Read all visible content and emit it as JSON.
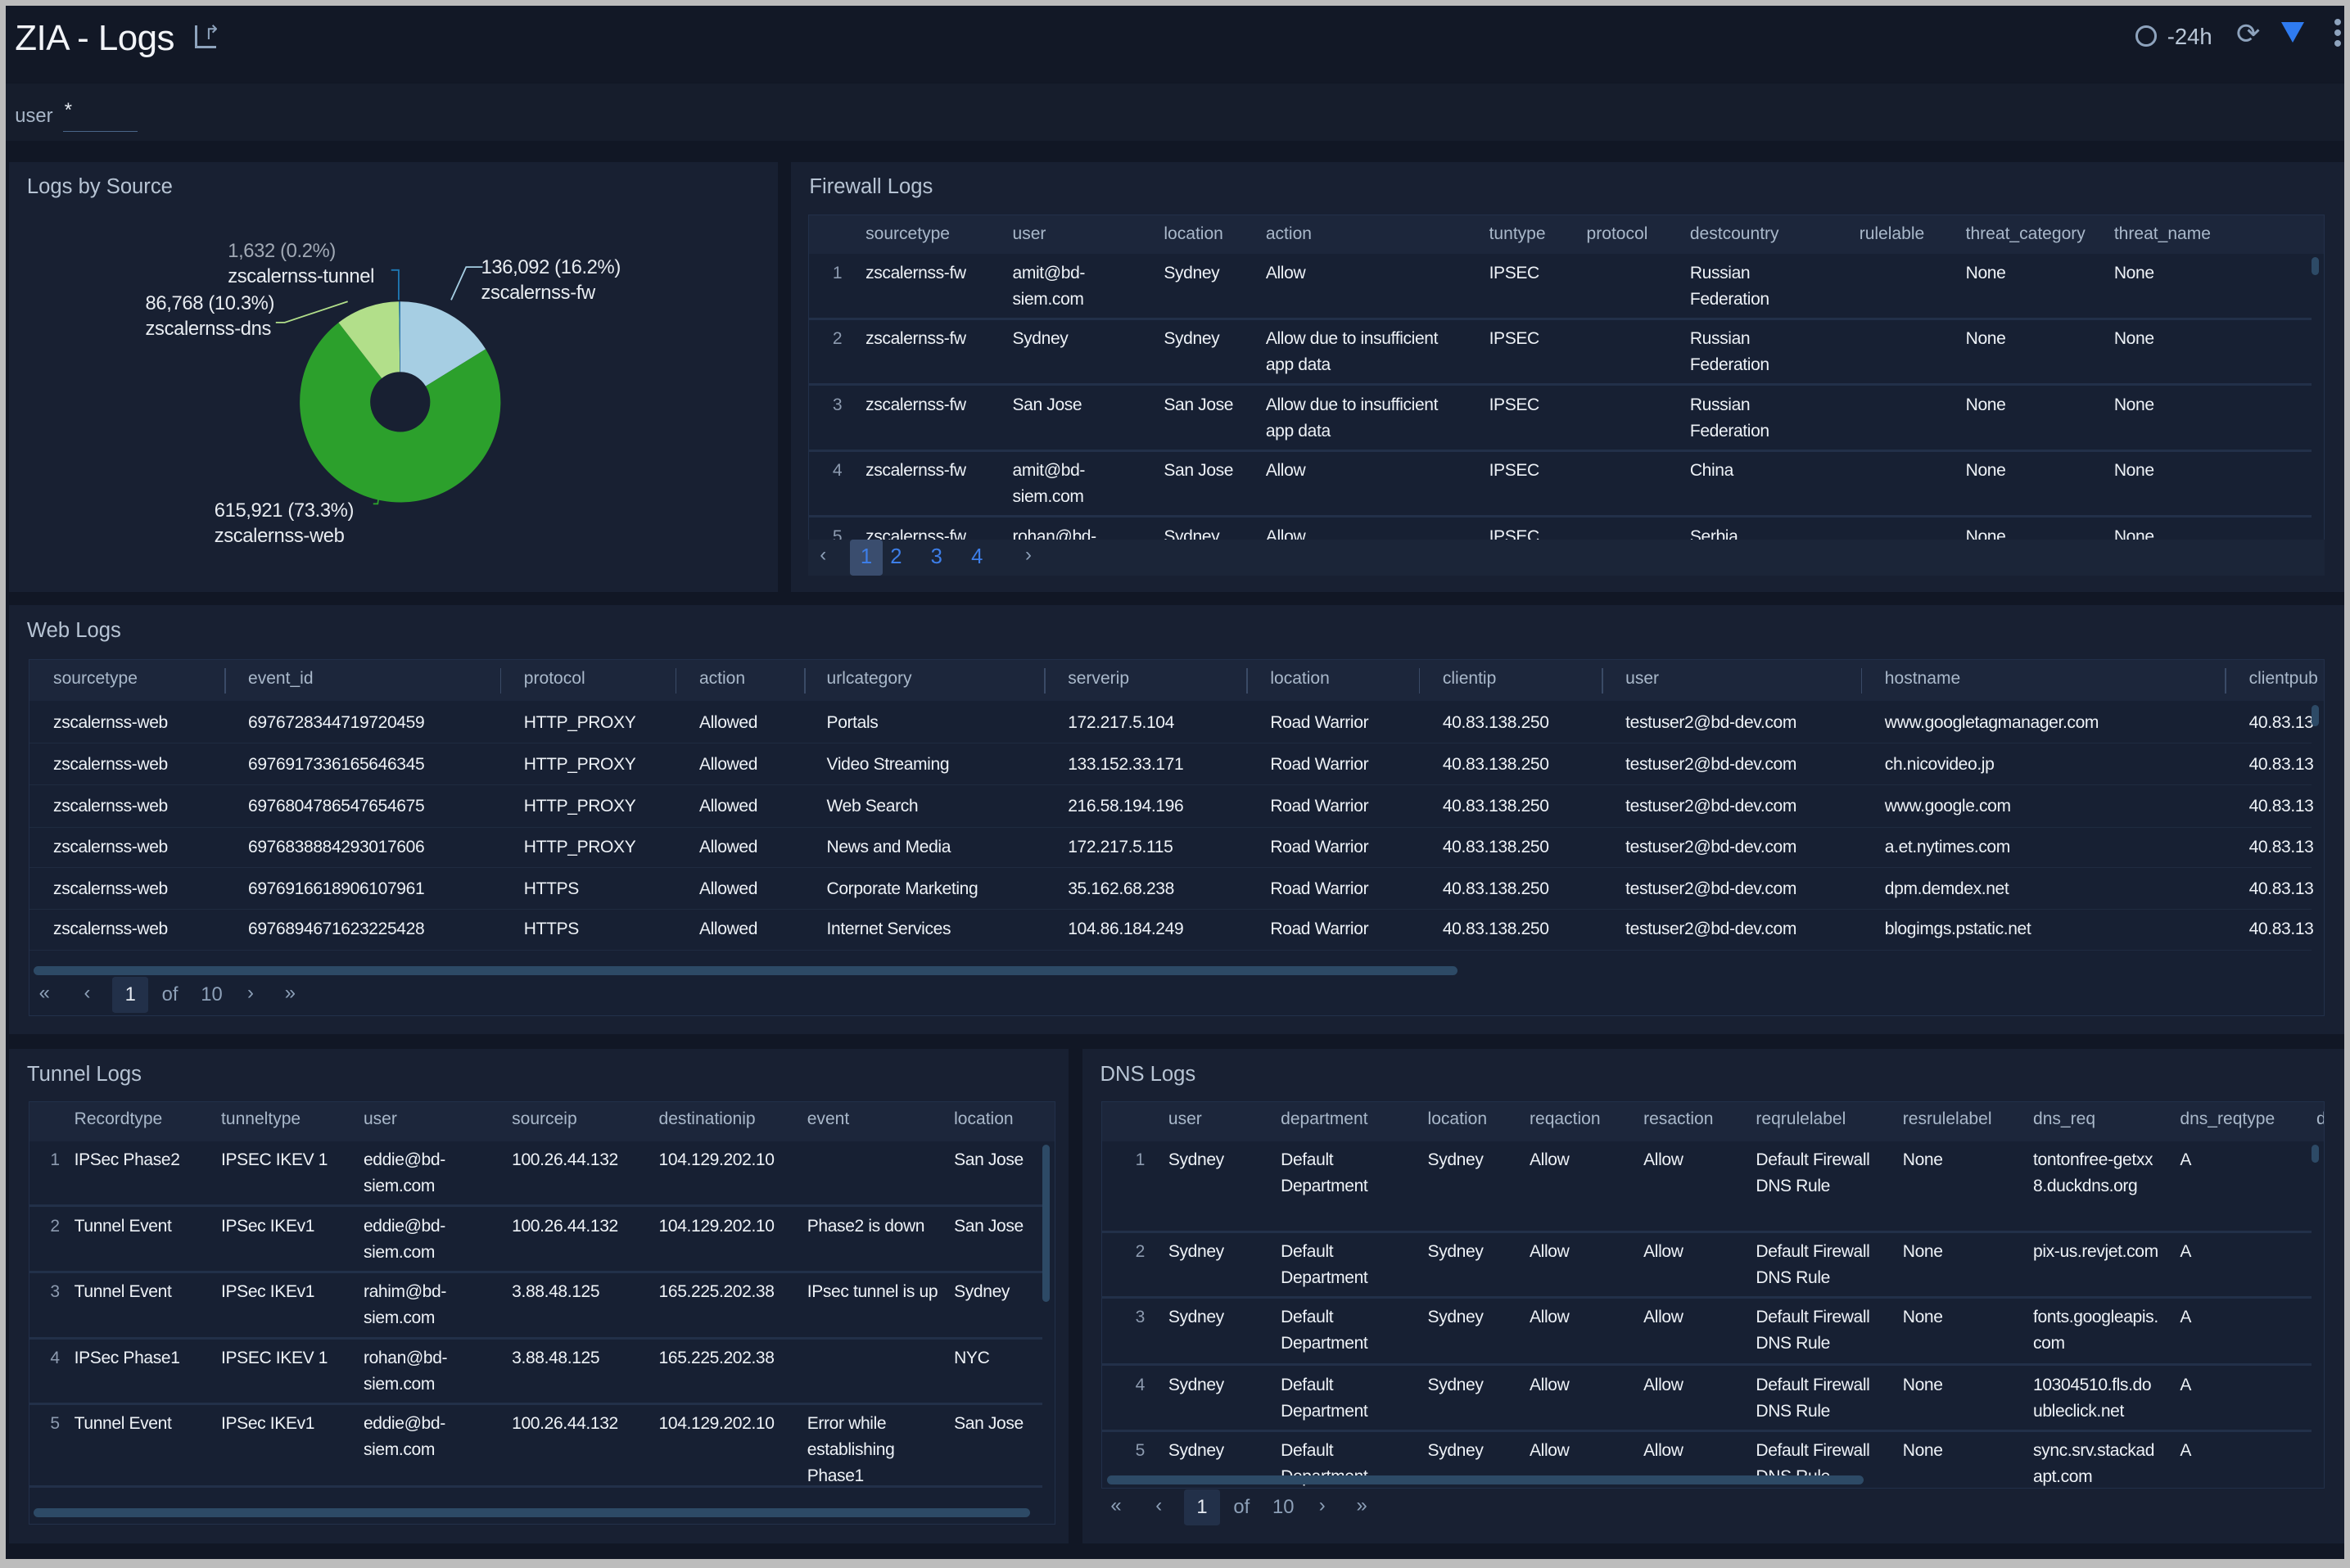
{
  "header": {
    "title": "ZIA - Logs",
    "time_range": "-24h",
    "icons": [
      "share-icon",
      "clock-icon",
      "refresh-icon",
      "filter-icon",
      "more-vertical-icon"
    ],
    "filter_color": "#2f7bf0"
  },
  "filter": {
    "label": "user",
    "value": "*"
  },
  "logs_by_source": {
    "title": "Logs by Source",
    "chart_data": {
      "type": "pie",
      "donut": true,
      "slices": [
        {
          "label": "zscalernss-fw",
          "value": 136092,
          "percent": 16.2,
          "display": "136,092 (16.2%)",
          "color": "#a6cee3"
        },
        {
          "label": "zscalernss-web",
          "value": 615921,
          "percent": 73.3,
          "display": "615,921 (73.3%)",
          "color": "#2ca02c"
        },
        {
          "label": "zscalernss-dns",
          "value": 86768,
          "percent": 10.3,
          "display": "86,768 (10.3%)",
          "color": "#b2df8a"
        },
        {
          "label": "zscalernss-tunnel",
          "value": 1632,
          "percent": 0.2,
          "display": "1,632 (0.2%)",
          "color": "#1f78b4"
        }
      ]
    }
  },
  "firewall": {
    "title": "Firewall Logs",
    "columns": [
      "",
      "sourcetype",
      "user",
      "location",
      "action",
      "tuntype",
      "protocol",
      "destcountry",
      "rulelable",
      "threat_category",
      "threat_name"
    ],
    "rows": [
      [
        "1",
        "zscalernss-fw",
        "amit@bd-siem.com",
        "Sydney",
        "Allow",
        "IPSEC",
        "",
        "Russian Federation",
        "",
        "None",
        "None"
      ],
      [
        "2",
        "zscalernss-fw",
        "Sydney",
        "Sydney",
        "Allow due to insufficient app data",
        "IPSEC",
        "",
        "Russian Federation",
        "",
        "None",
        "None"
      ],
      [
        "3",
        "zscalernss-fw",
        "San Jose",
        "San Jose",
        "Allow due to insufficient app data",
        "IPSEC",
        "",
        "Russian Federation",
        "",
        "None",
        "None"
      ],
      [
        "4",
        "zscalernss-fw",
        "amit@bd-siem.com",
        "San Jose",
        "Allow",
        "IPSEC",
        "",
        "China",
        "",
        "None",
        "None"
      ],
      [
        "5",
        "zscalernss-fw",
        "rohan@bd-siem.com",
        "Sydney",
        "Allow",
        "IPSEC",
        "",
        "Serbia",
        "",
        "None",
        "None"
      ]
    ],
    "pages": [
      "1",
      "2",
      "3",
      "4"
    ],
    "current_page": "1"
  },
  "web": {
    "title": "Web Logs",
    "columns": [
      "sourcetype",
      "event_id",
      "protocol",
      "action",
      "urlcategory",
      "serverip",
      "location",
      "clientip",
      "user",
      "hostname",
      "clientpub"
    ],
    "rows": [
      [
        "zscalernss-web",
        "6976728344719720459",
        "HTTP_PROXY",
        "Allowed",
        "Portals",
        "172.217.5.104",
        "Road Warrior",
        "40.83.138.250",
        "testuser2@bd-dev.com",
        "www.googletagmanager.com",
        "40.83.13"
      ],
      [
        "zscalernss-web",
        "6976917336165646345",
        "HTTP_PROXY",
        "Allowed",
        "Video Streaming",
        "133.152.33.171",
        "Road Warrior",
        "40.83.138.250",
        "testuser2@bd-dev.com",
        "ch.nicovideo.jp",
        "40.83.13"
      ],
      [
        "zscalernss-web",
        "6976804786547654675",
        "HTTP_PROXY",
        "Allowed",
        "Web Search",
        "216.58.194.196",
        "Road Warrior",
        "40.83.138.250",
        "testuser2@bd-dev.com",
        "www.google.com",
        "40.83.13"
      ],
      [
        "zscalernss-web",
        "6976838884293017606",
        "HTTP_PROXY",
        "Allowed",
        "News and Media",
        "172.217.5.115",
        "Road Warrior",
        "40.83.138.250",
        "testuser2@bd-dev.com",
        "a.et.nytimes.com",
        "40.83.13"
      ],
      [
        "zscalernss-web",
        "6976916618906107961",
        "HTTPS",
        "Allowed",
        "Corporate Marketing",
        "35.162.68.238",
        "Road Warrior",
        "40.83.138.250",
        "testuser2@bd-dev.com",
        "dpm.demdex.net",
        "40.83.13"
      ],
      [
        "zscalernss-web",
        "6976894671623225428",
        "HTTPS",
        "Allowed",
        "Internet Services",
        "104.86.184.249",
        "Road Warrior",
        "40.83.138.250",
        "testuser2@bd-dev.com",
        "blogimgs.pstatic.net",
        "40.83.13"
      ]
    ],
    "pagination": {
      "current": "1",
      "of": "of",
      "total": "10"
    }
  },
  "tunnel": {
    "title": "Tunnel Logs",
    "columns": [
      "",
      "Recordtype",
      "tunneltype",
      "user",
      "sourceip",
      "destinationip",
      "event",
      "location"
    ],
    "rows": [
      [
        "1",
        "IPSec Phase2",
        "IPSEC IKEV 1",
        "eddie@bd-siem.com",
        "100.26.44.132",
        "104.129.202.10",
        "",
        "San Jose"
      ],
      [
        "2",
        "Tunnel Event",
        "IPSec IKEv1",
        "eddie@bd-siem.com",
        "100.26.44.132",
        "104.129.202.10",
        "Phase2 is down",
        "San Jose"
      ],
      [
        "3",
        "Tunnel Event",
        "IPSec IKEv1",
        "rahim@bd-siem.com",
        "3.88.48.125",
        "165.225.202.38",
        "IPsec tunnel is up",
        "Sydney"
      ],
      [
        "4",
        "IPSec Phase1",
        "IPSEC IKEV 1",
        "rohan@bd-siem.com",
        "3.88.48.125",
        "165.225.202.38",
        "",
        "NYC"
      ],
      [
        "5",
        "Tunnel Event",
        "IPSec IKEv1",
        "eddie@bd-siem.com",
        "100.26.44.132",
        "104.129.202.10",
        "Error while establishing Phase1",
        "San Jose"
      ]
    ]
  },
  "dns": {
    "title": "DNS Logs",
    "columns": [
      "",
      "user",
      "department",
      "location",
      "reqaction",
      "resaction",
      "reqrulelabel",
      "resrulelabel",
      "dns_req",
      "dns_reqtype",
      "d"
    ],
    "rows": [
      [
        "1",
        "Sydney",
        "Default Department",
        "Sydney",
        "Allow",
        "Allow",
        "Default Firewall DNS Rule",
        "None",
        "tontonfree-getxx8.duckdns.org",
        "A",
        ""
      ],
      [
        "2",
        "Sydney",
        "Default Department",
        "Sydney",
        "Allow",
        "Allow",
        "Default Firewall DNS Rule",
        "None",
        "pix-us.revjet.com",
        "A",
        ""
      ],
      [
        "3",
        "Sydney",
        "Default Department",
        "Sydney",
        "Allow",
        "Allow",
        "Default Firewall DNS Rule",
        "None",
        "fonts.googleapis.com",
        "A",
        ""
      ],
      [
        "4",
        "Sydney",
        "Default Department",
        "Sydney",
        "Allow",
        "Allow",
        "Default Firewall DNS Rule",
        "None",
        "10304510.fls.doubleclick.net",
        "A",
        ""
      ],
      [
        "5",
        "Sydney",
        "Default Department",
        "Sydney",
        "Allow",
        "Allow",
        "Default Firewall DNS Rule",
        "None",
        "sync.srv.stackadapt.com",
        "A",
        ""
      ]
    ],
    "pagination": {
      "current": "1",
      "of": "of",
      "total": "10"
    }
  }
}
